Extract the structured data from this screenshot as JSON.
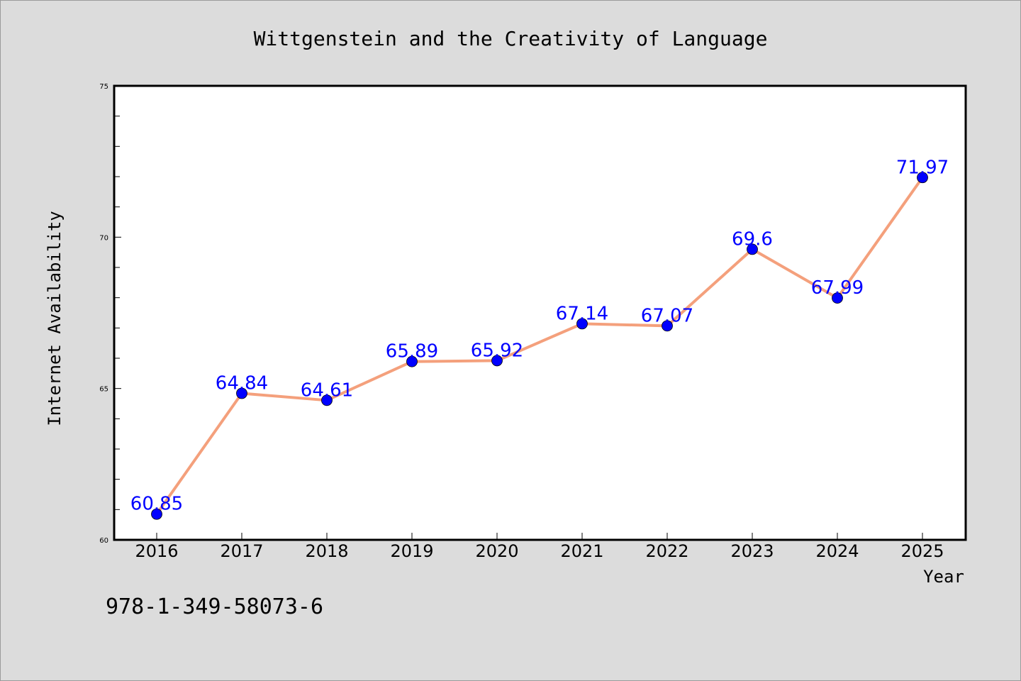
{
  "chart_data": {
    "type": "line",
    "title": "Wittgenstein and the Creativity of Language",
    "xlabel": "Year",
    "ylabel": "Internet Availability",
    "categories": [
      "2016",
      "2017",
      "2018",
      "2019",
      "2020",
      "2021",
      "2022",
      "2023",
      "2024",
      "2025"
    ],
    "series": [
      {
        "values": [
          60.85,
          64.84,
          64.61,
          65.89,
          65.92,
          67.14,
          67.07,
          69.6,
          67.99,
          71.97
        ],
        "labels": [
          "60.85",
          "64.84",
          "64.61",
          "65.89",
          "65.92",
          "67.14",
          "67.07",
          "69.6",
          "67.99",
          "71.97"
        ]
      }
    ],
    "ylim": [
      60,
      75
    ],
    "yticks": [
      60,
      65,
      70,
      75
    ],
    "grid": false,
    "line_color": "#f4a07c",
    "marker_color": "#0000ff",
    "label_color": "#0000ff",
    "background_color": "#dcdcdc",
    "plot_background_color": "#ffffff"
  },
  "footer": {
    "isbn": "978-1-349-58073-6"
  }
}
